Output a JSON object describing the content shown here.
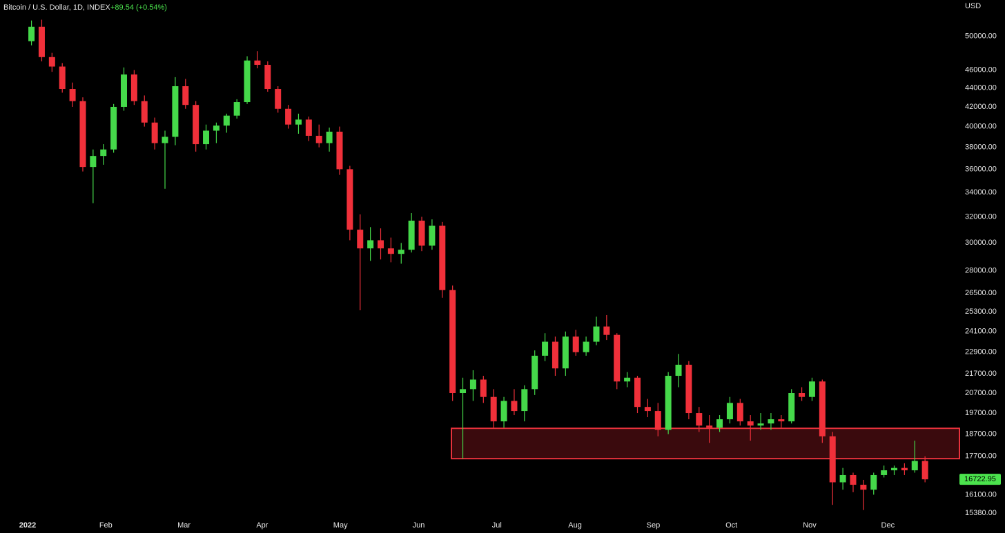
{
  "chart_data": {
    "type": "candlestick",
    "title": "Bitcoin / U.S. Dollar, 1D, INDEX",
    "subtitle": "+89.54 (+0.54%)",
    "y_axis_label": "USD",
    "log_scale": true,
    "ylim": [
      15230,
      54700
    ],
    "yticks": [
      {
        "value": 50000,
        "label": "50000.00"
      },
      {
        "value": 46000,
        "label": "46000.00"
      },
      {
        "value": 44000,
        "label": "44000.00"
      },
      {
        "value": 42000,
        "label": "42000.00"
      },
      {
        "value": 40000,
        "label": "40000.00"
      },
      {
        "value": 38000,
        "label": "38000.00"
      },
      {
        "value": 36000,
        "label": "36000.00"
      },
      {
        "value": 34000,
        "label": "34000.00"
      },
      {
        "value": 32000,
        "label": "32000.00"
      },
      {
        "value": 30000,
        "label": "30000.00"
      },
      {
        "value": 28000,
        "label": "28000.00"
      },
      {
        "value": 26500,
        "label": "26500.00"
      },
      {
        "value": 25300,
        "label": "25300.00"
      },
      {
        "value": 24100,
        "label": "24100.00"
      },
      {
        "value": 22900,
        "label": "22900.00"
      },
      {
        "value": 21700,
        "label": "21700.00"
      },
      {
        "value": 20700,
        "label": "20700.00"
      },
      {
        "value": 19700,
        "label": "19700.00"
      },
      {
        "value": 18700,
        "label": "18700.00"
      },
      {
        "value": 17700,
        "label": "17700.00"
      },
      {
        "value": 16100,
        "label": "16100.00"
      },
      {
        "value": 15380,
        "label": "15380.00"
      }
    ],
    "xtick_labels": [
      "2022",
      "Feb",
      "Mar",
      "Apr",
      "May",
      "Jun",
      "Jul",
      "Aug",
      "Sep",
      "Oct",
      "Nov",
      "Dec"
    ],
    "up_color": "#45d94a",
    "down_color": "#f0303a",
    "last_price": 16722.95,
    "last_price_color": "#4be34d",
    "zone": {
      "top": 18970,
      "bottom": 17600,
      "color": "#e8323c",
      "fill": "#3a0a0d"
    },
    "ohlc": [
      [
        49400,
        52000,
        48900,
        51200
      ],
      [
        51200,
        52100,
        47000,
        47500
      ],
      [
        47500,
        48000,
        45800,
        46400
      ],
      [
        46400,
        46800,
        43500,
        43900
      ],
      [
        43900,
        44600,
        42000,
        42600
      ],
      [
        42600,
        43000,
        35800,
        36200
      ],
      [
        36200,
        37800,
        33100,
        37200
      ],
      [
        37200,
        38300,
        36400,
        37800
      ],
      [
        37800,
        42300,
        37500,
        42000
      ],
      [
        42000,
        46300,
        41600,
        45500
      ],
      [
        45500,
        46000,
        42200,
        42600
      ],
      [
        42600,
        43200,
        40000,
        40400
      ],
      [
        40400,
        40900,
        37800,
        38400
      ],
      [
        38400,
        39600,
        34300,
        39000
      ],
      [
        39000,
        45200,
        38200,
        44200
      ],
      [
        44200,
        45000,
        41800,
        42200
      ],
      [
        42200,
        42600,
        37600,
        38300
      ],
      [
        38300,
        40200,
        37800,
        39600
      ],
      [
        39600,
        40400,
        38400,
        40100
      ],
      [
        40100,
        41300,
        39400,
        41100
      ],
      [
        41100,
        42800,
        40800,
        42500
      ],
      [
        42500,
        47600,
        42300,
        47100
      ],
      [
        47100,
        48200,
        46200,
        46600
      ],
      [
        46600,
        47000,
        43600,
        43900
      ],
      [
        43900,
        44200,
        41400,
        41800
      ],
      [
        41800,
        42200,
        39800,
        40200
      ],
      [
        40200,
        41300,
        39300,
        40700
      ],
      [
        40700,
        41000,
        38600,
        39100
      ],
      [
        39100,
        40200,
        38000,
        38400
      ],
      [
        38400,
        39900,
        37600,
        39500
      ],
      [
        39500,
        40000,
        35500,
        36000
      ],
      [
        36000,
        36300,
        30200,
        31000
      ],
      [
        31000,
        32200,
        25400,
        29600
      ],
      [
        29600,
        31200,
        28700,
        30200
      ],
      [
        30200,
        31100,
        28800,
        29600
      ],
      [
        29600,
        30400,
        28600,
        29200
      ],
      [
        29200,
        30000,
        28500,
        29500
      ],
      [
        29500,
        32300,
        29300,
        31700
      ],
      [
        31700,
        32000,
        29400,
        29800
      ],
      [
        29800,
        31800,
        29500,
        31300
      ],
      [
        31300,
        31600,
        26200,
        26700
      ],
      [
        26700,
        27000,
        20300,
        20700
      ],
      [
        20700,
        21500,
        17600,
        20900
      ],
      [
        20900,
        21900,
        20300,
        21400
      ],
      [
        21400,
        21600,
        20200,
        20500
      ],
      [
        20500,
        20900,
        19000,
        19300
      ],
      [
        19300,
        20500,
        19000,
        20300
      ],
      [
        20300,
        20900,
        19600,
        19800
      ],
      [
        19800,
        21100,
        19300,
        20900
      ],
      [
        20900,
        23000,
        20600,
        22700
      ],
      [
        22700,
        24000,
        22400,
        23500
      ],
      [
        23500,
        23800,
        21600,
        22000
      ],
      [
        22000,
        24100,
        21600,
        23800
      ],
      [
        23800,
        24200,
        22700,
        22900
      ],
      [
        22900,
        23800,
        22700,
        23500
      ],
      [
        23500,
        25000,
        23300,
        24400
      ],
      [
        24400,
        25100,
        23600,
        23900
      ],
      [
        23900,
        24000,
        20900,
        21300
      ],
      [
        21300,
        21800,
        21000,
        21500
      ],
      [
        21500,
        21600,
        19700,
        20000
      ],
      [
        20000,
        20400,
        19500,
        19800
      ],
      [
        19800,
        20200,
        18600,
        18900
      ],
      [
        18900,
        21800,
        18700,
        21600
      ],
      [
        21600,
        22800,
        21000,
        22200
      ],
      [
        22200,
        22400,
        19400,
        19700
      ],
      [
        19700,
        20000,
        18800,
        19100
      ],
      [
        19100,
        19600,
        18300,
        19000
      ],
      [
        19000,
        19600,
        18800,
        19400
      ],
      [
        19400,
        20500,
        19200,
        20200
      ],
      [
        20200,
        20400,
        19100,
        19300
      ],
      [
        19300,
        19600,
        18400,
        19100
      ],
      [
        19100,
        19700,
        18900,
        19200
      ],
      [
        19200,
        19700,
        18900,
        19400
      ],
      [
        19400,
        19600,
        19000,
        19300
      ],
      [
        19300,
        20900,
        19200,
        20700
      ],
      [
        20700,
        21000,
        20300,
        20500
      ],
      [
        20500,
        21500,
        20300,
        21300
      ],
      [
        21300,
        21400,
        18300,
        18600
      ],
      [
        18600,
        18800,
        15700,
        16600
      ],
      [
        16600,
        17200,
        16300,
        16900
      ],
      [
        16900,
        17000,
        16200,
        16500
      ],
      [
        16500,
        16700,
        15500,
        16300
      ],
      [
        16300,
        17000,
        16100,
        16900
      ],
      [
        16900,
        17300,
        16800,
        17100
      ],
      [
        17100,
        17300,
        16900,
        17200
      ],
      [
        17200,
        17400,
        16900,
        17100
      ],
      [
        17100,
        18400,
        17000,
        17500
      ],
      [
        17500,
        17700,
        16600,
        16722.95
      ]
    ]
  }
}
